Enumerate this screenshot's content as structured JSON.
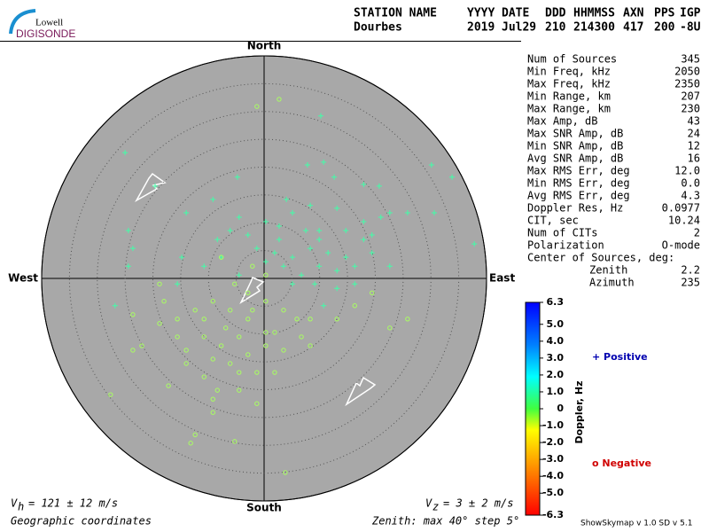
{
  "header": {
    "logo_top": "Lowell",
    "logo_bottom": "DIGISONDE",
    "labels": [
      "STATION NAME",
      "YYYY",
      "DATE",
      "DDD",
      "HHMMSS",
      "AXN",
      "PPS",
      "IGP"
    ],
    "values": [
      "Dourbes",
      "2019",
      "Jul29",
      "210",
      "214300",
      "417",
      "200",
      "-8U"
    ]
  },
  "stats": [
    [
      "Num of Sources",
      "345"
    ],
    [
      "Min Freq, kHz",
      "2050"
    ],
    [
      "Max Freq, kHz",
      "2350"
    ],
    [
      "Min Range, km",
      "207"
    ],
    [
      "Max Range, km",
      "230"
    ],
    [
      "Max Amp, dB",
      "43"
    ],
    [
      "Max SNR Amp, dB",
      "24"
    ],
    [
      "Min SNR Amp, dB",
      "12"
    ],
    [
      "Avg SNR Amp, dB",
      "16"
    ],
    [
      "Max RMS Err, deg",
      "12.0"
    ],
    [
      "Min RMS Err, deg",
      "0.0"
    ],
    [
      "Avg RMS Err, deg",
      "4.3"
    ],
    [
      "Doppler Res, Hz",
      "0.0977"
    ],
    [
      "CIT, sec",
      "10.24"
    ],
    [
      "Num of CITs",
      "2"
    ],
    [
      "Polarization",
      "O-mode"
    ],
    [
      "Center of Sources, deg:"
    ],
    [
      "Zenith",
      "2.2"
    ],
    [
      "Azimuth",
      "235"
    ]
  ],
  "skymap": {
    "directions": {
      "north": "North",
      "south": "South",
      "east": "East",
      "west": "West"
    },
    "zenith_max": 40,
    "zenith_step": 5,
    "positive": {
      "marker": "+",
      "color": "#40ffa8",
      "x": [
        10.2,
        -25.0,
        30.1,
        33.8,
        -4.8,
        7.8,
        10.7,
        12.6,
        17.9,
        20.7,
        4.0,
        5.1,
        8.3,
        13.1,
        22.6,
        21.0,
        0.3,
        2.7,
        7.5,
        9.9,
        14.7,
        17.9,
        19.4,
        8.3,
        11.5,
        14.7,
        16.3,
        5.1,
        3.5,
        1.9,
        -1.3,
        0.3,
        -2.9,
        -6.1,
        -8.4,
        -14.0,
        -19.6,
        -24.4,
        -24.4,
        -14.8,
        -10.8,
        -7.7,
        -4.5,
        6.7,
        9.1,
        13.1,
        16.3,
        10.7,
        19.4,
        37.8,
        30.6,
        13.1,
        17.9,
        2.7,
        -4.5,
        -9.2,
        9.9,
        22.6,
        25.8,
        -26.8,
        -23.6,
        -15.6,
        5.1,
        9.9
      ],
      "y": [
        29.2,
        22.6,
        20.4,
        18.2,
        18.2,
        20.4,
        20.9,
        18.2,
        16.9,
        16.6,
        14.2,
        11.8,
        13.1,
        12.6,
        11.8,
        11.0,
        10.2,
        9.4,
        8.6,
        7.0,
        8.6,
        7.0,
        7.8,
        5.4,
        4.6,
        3.8,
        2.2,
        3.8,
        2.2,
        4.6,
        5.4,
        3.0,
        7.8,
        8.6,
        7.0,
        11.8,
        16.6,
        8.6,
        2.2,
        3.8,
        2.2,
        3.8,
        0.6,
        0.6,
        -1.0,
        -1.8,
        -1.0,
        -4.9,
        4.6,
        6.2,
        11.8,
        1.4,
        10.2,
        7.0,
        11.0,
        14.2,
        2.2,
        2.2,
        11.8,
        -4.9,
        5.4,
        -1.0,
        -1.0,
        8.6
      ]
    },
    "negative": {
      "marker": "o",
      "color": "#a8ff60",
      "x": [
        2.7,
        -1.3,
        -7.7,
        -5.3,
        -2.9,
        -9.2,
        -12.4,
        -10.8,
        -6.1,
        -2.9,
        0.3,
        3.5,
        1.9,
        -4.5,
        -7.7,
        -10.8,
        -14.0,
        -15.6,
        -18.8,
        -18.0,
        -22.0,
        -23.6,
        -14.0,
        -9.2,
        -6.1,
        -2.9,
        0.3,
        3.5,
        6.7,
        8.3,
        -1.3,
        -4.5,
        -10.8,
        -17.2,
        -9.2,
        -9.2,
        -12.4,
        -5.3,
        3.8,
        -1.3,
        1.9,
        8.3,
        13.1,
        16.3,
        19.4,
        22.6,
        25.8,
        -27.6,
        -23.6,
        -18.8,
        -15.6,
        -6.9,
        -2.1,
        0.3,
        5.9,
        -8.4,
        -13.2,
        -4.5,
        0.3,
        -2.1
      ],
      "y": [
        32.2,
        30.9,
        3.8,
        -1.0,
        -2.6,
        -4.1,
        -5.7,
        -7.3,
        -5.7,
        -7.3,
        -4.1,
        -5.7,
        -9.7,
        -10.5,
        -12.1,
        -10.5,
        -12.9,
        -7.3,
        -8.1,
        -4.1,
        -12.1,
        -12.9,
        -15.3,
        -14.5,
        -15.3,
        -13.7,
        -12.1,
        -12.9,
        -10.5,
        -7.3,
        -16.9,
        -16.9,
        -17.7,
        -19.3,
        -21.7,
        -24.1,
        -28.1,
        -29.3,
        -34.9,
        -22.5,
        -16.9,
        -12.1,
        -7.3,
        -4.9,
        -2.6,
        -8.9,
        -7.3,
        -20.9,
        -6.5,
        -1.0,
        -10.5,
        -8.9,
        -5.7,
        -9.7,
        -7.3,
        -20.1,
        -29.6,
        -20.1,
        0.6,
        2.2
      ]
    }
  },
  "colorbar": {
    "title": "Doppler, Hz",
    "lim": [
      -6.3,
      6.3
    ],
    "ticks": [
      6.3,
      {
        "value": 5,
        "label": "5.0"
      },
      {
        "value": 4,
        "label": "4.0"
      },
      {
        "value": 3,
        "label": "3.0"
      },
      {
        "value": 2,
        "label": "2.0"
      },
      {
        "value": 1,
        "label": "1.0"
      },
      0,
      {
        "value": -1,
        "label": "-1.0"
      },
      {
        "value": -2,
        "label": "-2.0"
      },
      {
        "value": -3,
        "label": "-3.0"
      },
      {
        "value": -4,
        "label": "-4.0"
      },
      {
        "value": -5,
        "label": "-5.0"
      },
      -6.3
    ],
    "positive_label": "+ Positive",
    "negative_label": "o Negative"
  },
  "footer": {
    "vh_symbol": "V",
    "vh_sub": "h",
    "vh_text": "= 121 ± 12 m/s",
    "vz_symbol": "V",
    "vz_sub": "z",
    "vz_text": "= 3 ± 2 m/s",
    "coordinates": "Geographic coordinates",
    "zenith": "Zenith: max 40°  step 5°",
    "version": "ShowSkymap v 1.0   SD v 5.1"
  }
}
